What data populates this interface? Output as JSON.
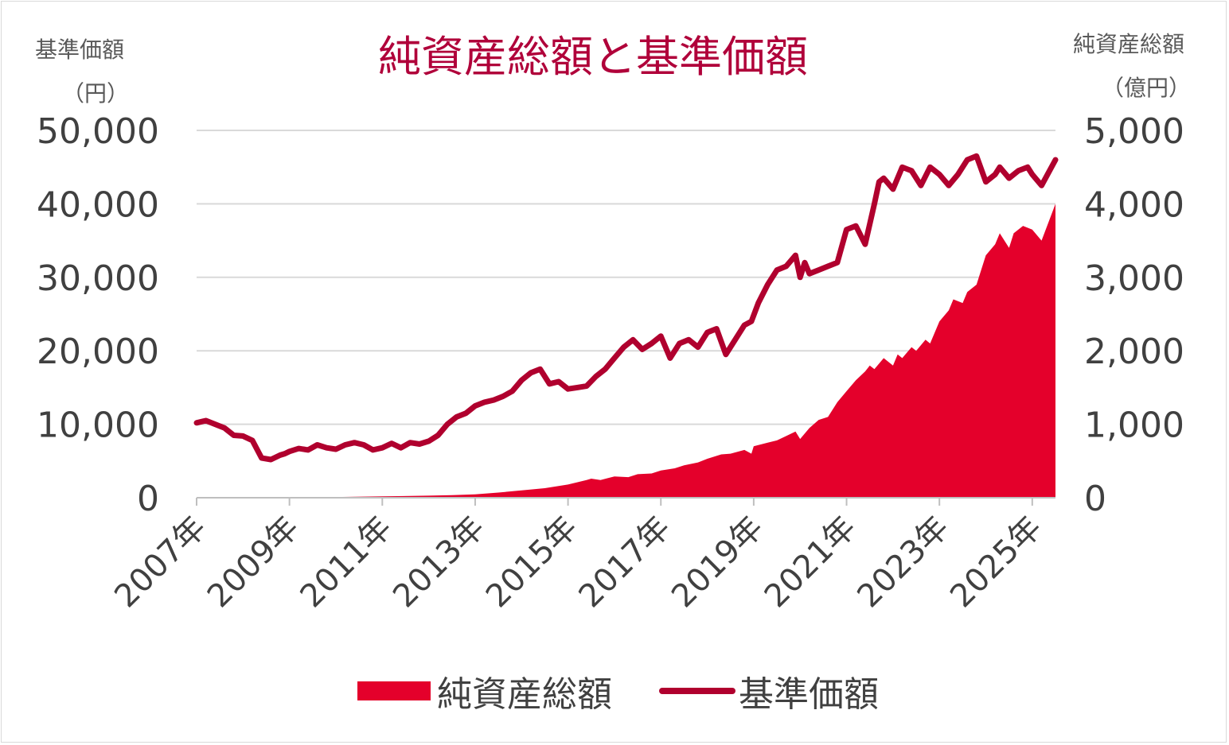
{
  "chart_data": {
    "type": "area+line",
    "title": "純資産総額と基準価額",
    "left_axis": {
      "label": "基準価額",
      "unit": "（円）",
      "min": 0,
      "max": 50000,
      "ticks": [
        "0",
        "10,000",
        "20,000",
        "30,000",
        "40,000",
        "50,000"
      ]
    },
    "right_axis": {
      "label": "純資産総額",
      "unit": "（億円）",
      "min": 0,
      "max": 5000,
      "ticks": [
        "0",
        "1,000",
        "2,000",
        "3,000",
        "4,000",
        "5,000"
      ]
    },
    "x_ticks": [
      "2007年",
      "2009年",
      "2011年",
      "2013年",
      "2015年",
      "2017年",
      "2019年",
      "2021年",
      "2023年",
      "2025年"
    ],
    "x_range": [
      2007.0,
      2025.5
    ],
    "grid": true,
    "legend_position": "bottom",
    "colors": {
      "area": "#e4002b",
      "line": "#b0002e"
    },
    "series": [
      {
        "name": "純資産総額",
        "type": "area",
        "axis": "right",
        "x": [
          2007.0,
          2008.0,
          2009.0,
          2010.0,
          2011.0,
          2012.0,
          2012.5,
          2013.0,
          2013.5,
          2014.0,
          2014.5,
          2015.0,
          2015.4,
          2015.5,
          2015.7,
          2016.0,
          2016.3,
          2016.5,
          2016.8,
          2017.0,
          2017.3,
          2017.5,
          2017.8,
          2018.0,
          2018.3,
          2018.5,
          2018.8,
          2018.95,
          2019.0,
          2019.3,
          2019.5,
          2019.7,
          2019.9,
          2020.0,
          2020.2,
          2020.4,
          2020.6,
          2020.8,
          2021.0,
          2021.2,
          2021.4,
          2021.5,
          2021.6,
          2021.8,
          2022.0,
          2022.1,
          2022.2,
          2022.4,
          2022.5,
          2022.7,
          2022.8,
          2023.0,
          2023.2,
          2023.3,
          2023.5,
          2023.6,
          2023.8,
          2024.0,
          2024.2,
          2024.3,
          2024.5,
          2024.6,
          2024.8,
          2025.0,
          2025.2,
          2025.5
        ],
        "values": [
          0,
          2,
          5,
          10,
          18,
          28,
          35,
          45,
          70,
          100,
          130,
          180,
          240,
          260,
          240,
          290,
          280,
          320,
          330,
          370,
          400,
          440,
          480,
          530,
          590,
          600,
          650,
          600,
          700,
          750,
          780,
          840,
          900,
          800,
          950,
          1060,
          1100,
          1300,
          1450,
          1600,
          1720,
          1800,
          1750,
          1900,
          1800,
          1950,
          1900,
          2050,
          2000,
          2150,
          2100,
          2400,
          2550,
          2700,
          2650,
          2800,
          2900,
          3300,
          3450,
          3600,
          3400,
          3600,
          3700,
          3650,
          3500,
          4000
        ]
      },
      {
        "name": "基準価額",
        "type": "line",
        "axis": "left",
        "x": [
          2007.0,
          2007.2,
          2007.4,
          2007.6,
          2007.8,
          2008.0,
          2008.2,
          2008.4,
          2008.6,
          2008.8,
          2008.9,
          2009.0,
          2009.2,
          2009.4,
          2009.6,
          2009.8,
          2010.0,
          2010.2,
          2010.4,
          2010.6,
          2010.8,
          2011.0,
          2011.2,
          2011.4,
          2011.6,
          2011.8,
          2012.0,
          2012.2,
          2012.4,
          2012.6,
          2012.8,
          2013.0,
          2013.2,
          2013.4,
          2013.6,
          2013.8,
          2014.0,
          2014.2,
          2014.4,
          2014.6,
          2014.8,
          2015.0,
          2015.2,
          2015.4,
          2015.6,
          2015.8,
          2016.0,
          2016.2,
          2016.4,
          2016.6,
          2016.8,
          2017.0,
          2017.2,
          2017.4,
          2017.6,
          2017.8,
          2018.0,
          2018.2,
          2018.4,
          2018.6,
          2018.8,
          2018.95,
          2019.1,
          2019.3,
          2019.5,
          2019.7,
          2019.9,
          2020.0,
          2020.1,
          2020.2,
          2020.4,
          2020.6,
          2020.8,
          2021.0,
          2021.2,
          2021.4,
          2021.6,
          2021.7,
          2021.8,
          2022.0,
          2022.2,
          2022.4,
          2022.6,
          2022.8,
          2023.0,
          2023.2,
          2023.4,
          2023.6,
          2023.8,
          2024.0,
          2024.2,
          2024.3,
          2024.5,
          2024.7,
          2024.9,
          2025.0,
          2025.2,
          2025.5
        ],
        "values": [
          10200,
          10500,
          10000,
          9500,
          8500,
          8400,
          7800,
          5400,
          5200,
          5800,
          6000,
          6300,
          6700,
          6500,
          7200,
          6800,
          6600,
          7200,
          7500,
          7200,
          6500,
          6800,
          7400,
          6800,
          7500,
          7300,
          7700,
          8500,
          10000,
          11000,
          11500,
          12500,
          13000,
          13300,
          13800,
          14500,
          16000,
          17000,
          17500,
          15500,
          15800,
          14800,
          15000,
          15200,
          16500,
          17500,
          19000,
          20500,
          21500,
          20200,
          21000,
          22000,
          19000,
          21000,
          21500,
          20500,
          22500,
          23000,
          19500,
          21500,
          23500,
          24000,
          26500,
          29000,
          31000,
          31500,
          33000,
          30000,
          32000,
          30500,
          31000,
          31500,
          32000,
          36500,
          37000,
          34500,
          40000,
          43000,
          43500,
          42000,
          45000,
          44500,
          42500,
          45000,
          44000,
          42500,
          44000,
          46000,
          46500,
          43000,
          44000,
          45000,
          43500,
          44500,
          45000,
          44000,
          42500,
          46000
        ]
      }
    ]
  }
}
